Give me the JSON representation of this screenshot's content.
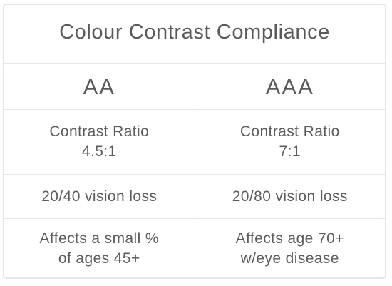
{
  "title": "Colour Contrast Compliance",
  "columns": [
    {
      "level": "AA",
      "ratio_line1": "Contrast Ratio",
      "ratio_line2": "4.5:1",
      "vision": "20/40 vision loss",
      "affects_line1": "Affects a small %",
      "affects_line2": "of ages 45+"
    },
    {
      "level": "AAA",
      "ratio_line1": "Contrast Ratio",
      "ratio_line2": "7:1",
      "vision": "20/80 vision loss",
      "affects_line1": "Affects age 70+",
      "affects_line2": "w/eye disease"
    }
  ],
  "colors": {
    "text": "#5c5c5c",
    "border": "#e6e6e6",
    "background": "#ffffff"
  }
}
